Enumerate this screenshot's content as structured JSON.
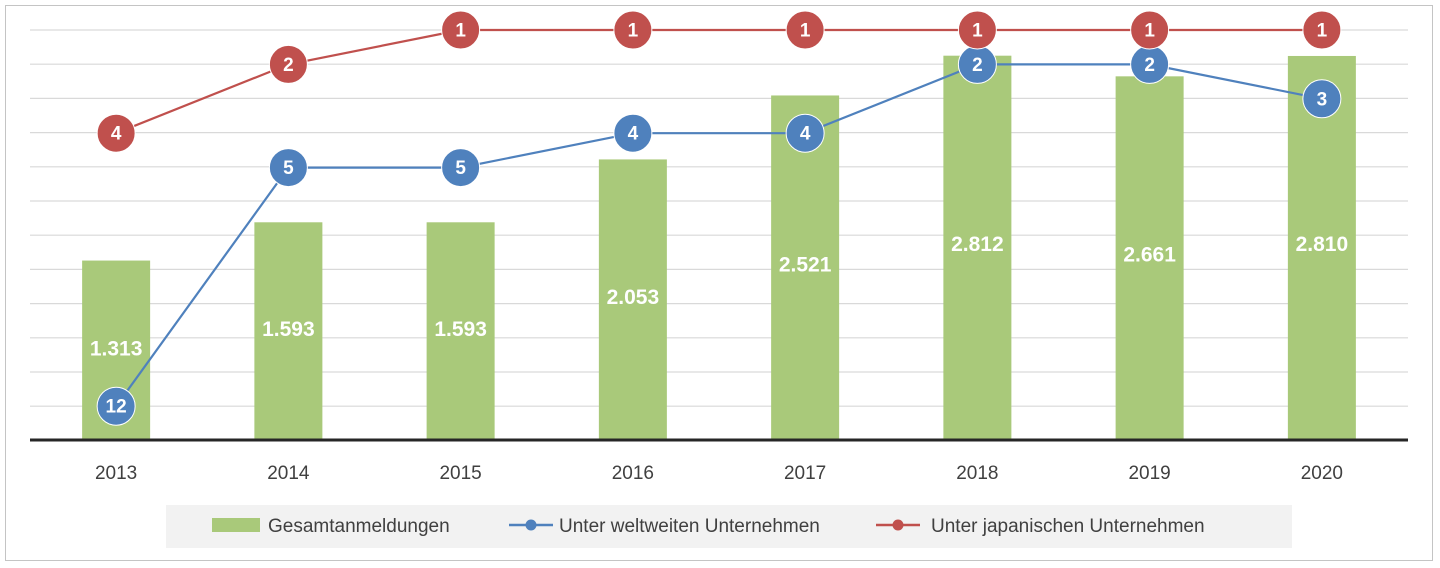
{
  "chart_data": {
    "type": "bar",
    "categories": [
      "2013",
      "2014",
      "2015",
      "2016",
      "2017",
      "2018",
      "2019",
      "2020"
    ],
    "bar_series": {
      "name": "Gesamtanmeldungen",
      "values": [
        1313,
        1593,
        1593,
        2053,
        2521,
        2812,
        2661,
        2810
      ],
      "labels": [
        "1.313",
        "1.593",
        "1.593",
        "2.053",
        "2.521",
        "2.812",
        "2.661",
        "2.810"
      ],
      "color": "#a9c97a"
    },
    "line_series": [
      {
        "name": "Unter weltweiten Unternehmen",
        "values": [
          12,
          5,
          5,
          4,
          4,
          2,
          2,
          3
        ],
        "color": "#4f81bd"
      },
      {
        "name": "Unter japanischen Unternehmen",
        "values": [
          4,
          2,
          1,
          1,
          1,
          1,
          1,
          1
        ],
        "color": "#c0504d"
      }
    ],
    "line_axis": "rank",
    "title": "",
    "xlabel": "",
    "ylabel": "",
    "ylim": [
      0,
      3000
    ],
    "grid": true,
    "legend_position": "bottom"
  }
}
